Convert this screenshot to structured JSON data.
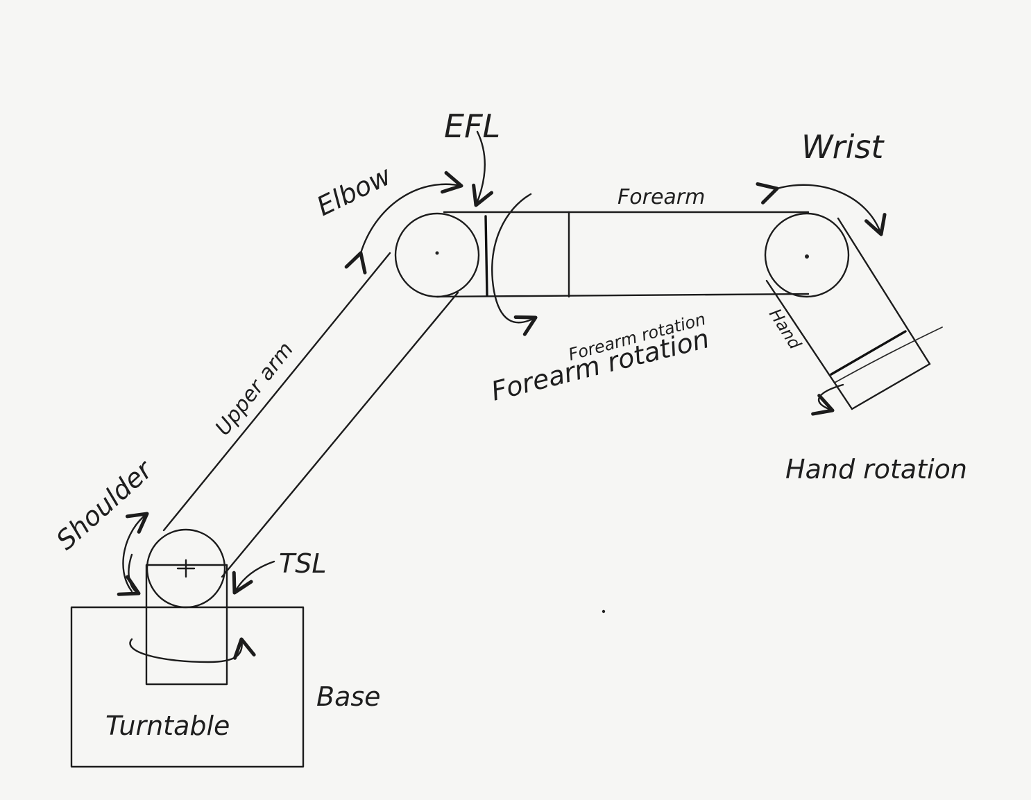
{
  "labels": {
    "efl": "EFL",
    "elbow": "Elbow",
    "forearm": "Forearm",
    "wrist": "Wrist",
    "upper_arm": "Upper arm",
    "forearm_rotation_small": "Forearm rotation",
    "forearm_rotation_large": "Forearm rotation",
    "hand": "Hand",
    "hand_rotation": "Hand rotation",
    "shoulder": "Shoulder",
    "tsl": "TSL",
    "base": "Base",
    "turntable": "Turntable"
  },
  "colors": {
    "paper": "#f6f6f4",
    "ink": "#1c1c1c"
  }
}
